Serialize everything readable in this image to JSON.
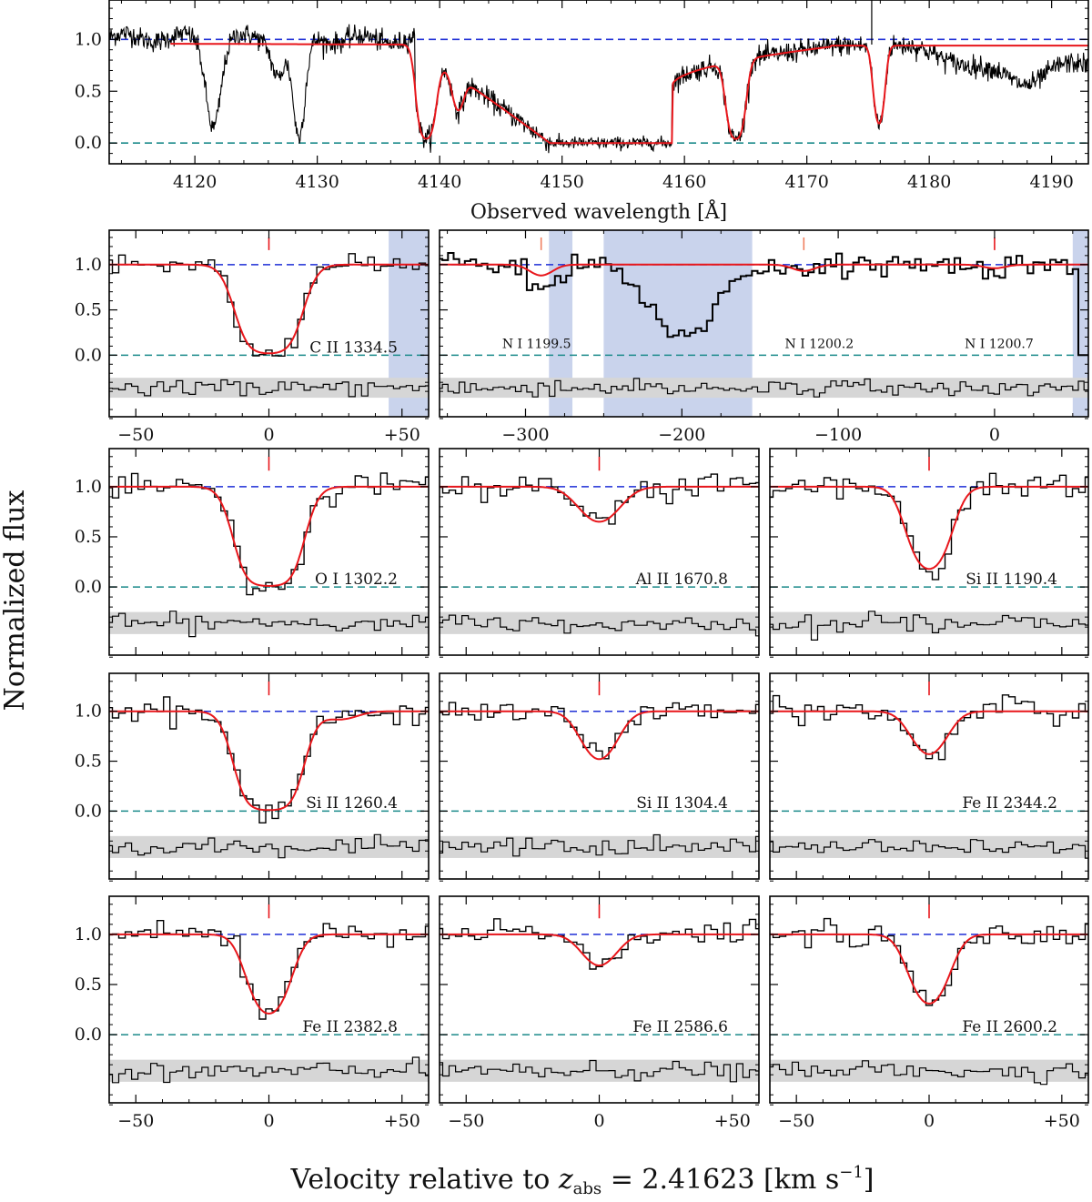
{
  "figure": {
    "ylabel": "Normalized flux",
    "xlabel": "Velocity relative to z_abs = 2.41623 [km s^-1]",
    "xlabel_prefix": "Velocity relative to ",
    "xlabel_z": "z",
    "xlabel_sub": "abs",
    "xlabel_mid": " = 2.41623 [km s",
    "xlabel_sup": "−1",
    "xlabel_end": "]",
    "top_xlabel": "Observed wavelength [Å]",
    "colors": {
      "data": "#000000",
      "model": "#e8161b",
      "continuum": "#1f2fd6",
      "zero": "#1a8a8a",
      "masked": "#c9d3ec",
      "residual_band": "#d6d6d6"
    }
  },
  "chart_data": [
    {
      "id": "overview",
      "type": "line",
      "xlabel": "Observed wavelength [Å]",
      "xlim": [
        4113,
        4193
      ],
      "ylim": [
        -0.2,
        1.38
      ],
      "xticks": [
        4120,
        4130,
        4140,
        4150,
        4160,
        4170,
        4180,
        4190
      ],
      "yticks": [
        0.0,
        0.5,
        1.0
      ],
      "absorption_features": [
        {
          "center": 4121.5,
          "depth": 0.85,
          "width": 0.6
        },
        {
          "center": 4126.8,
          "depth": 0.35,
          "width": 0.5
        },
        {
          "center": 4128.5,
          "depth": 0.95,
          "width": 0.5
        },
        {
          "center": 4138.9,
          "depth": 0.95,
          "width": 0.5
        },
        {
          "center": 4141.5,
          "depth": 0.5,
          "width": 0.4
        },
        {
          "center": 4164.2,
          "depth": 0.95,
          "width": 0.5
        },
        {
          "center": 4175.9,
          "depth": 0.8,
          "width": 0.35
        },
        {
          "center": 4188.0,
          "depth": 0.4,
          "width": 1.8
        }
      ],
      "damped_trough": {
        "start": 4149,
        "end": 4159
      }
    },
    {
      "id": "C II 1334.5",
      "ion": "C II 1334.5",
      "type": "line",
      "xlim": [
        -60,
        60
      ],
      "ylim": [
        -0.68,
        1.38
      ],
      "xticks": [
        -50,
        0,
        50
      ],
      "xticklabels": [
        "−50",
        "0",
        "+50"
      ],
      "yticks": [
        0.0,
        0.5,
        1.0
      ],
      "components": [
        {
          "v": 0,
          "depth": 0.98,
          "sigma": 7
        }
      ],
      "masked": [
        [
          45,
          60
        ]
      ]
    },
    {
      "id": "N I",
      "type": "line",
      "xlim": [
        -355,
        60
      ],
      "ylim": [
        -0.68,
        1.38
      ],
      "xticks": [
        -300,
        -200,
        -100,
        0
      ],
      "xticklabels": [
        "−300",
        "−200",
        "−100",
        "0"
      ],
      "labels": [
        {
          "text": "N I 1199.5",
          "v": -290
        },
        {
          "text": "N I 1200.2",
          "v": -115
        },
        {
          "text": "N I 1200.7",
          "v": 0
        }
      ],
      "markers": [
        -290,
        -122,
        0
      ],
      "components": [
        {
          "v": -290,
          "depth": 0.12,
          "sigma": 7
        },
        {
          "v": -122,
          "depth": 0.07,
          "sigma": 7
        },
        {
          "v": 0,
          "depth": 0.04,
          "sigma": 7
        }
      ],
      "masked": [
        [
          -285,
          -270
        ],
        [
          -250,
          -155
        ],
        [
          50,
          60
        ]
      ],
      "data_trough": {
        "v": -200,
        "depth": 0.82,
        "sigma": 20
      }
    },
    {
      "id": "O I 1302.2",
      "ion": "O I 1302.2",
      "type": "line",
      "xlim": [
        -60,
        60
      ],
      "ylim": [
        -0.68,
        1.38
      ],
      "xticks": [
        -50,
        0,
        50
      ],
      "components": [
        {
          "v": 0,
          "depth": 0.99,
          "sigma": 7
        }
      ],
      "masked": []
    },
    {
      "id": "Al II 1670.8",
      "ion": "Al II 1670.8",
      "type": "line",
      "xlim": [
        -60,
        60
      ],
      "ylim": [
        -0.68,
        1.38
      ],
      "xticks": [
        -50,
        0,
        50
      ],
      "components": [
        {
          "v": 0,
          "depth": 0.35,
          "sigma": 7
        }
      ],
      "masked": []
    },
    {
      "id": "Si II 1190.4",
      "ion": "Si II 1190.4",
      "type": "line",
      "xlim": [
        -60,
        60
      ],
      "ylim": [
        -0.68,
        1.38
      ],
      "xticks": [
        -50,
        0,
        50
      ],
      "components": [
        {
          "v": 0,
          "depth": 0.82,
          "sigma": 6
        }
      ],
      "masked": []
    },
    {
      "id": "Si II 1260.4",
      "ion": "Si II 1260.4",
      "type": "line",
      "xlim": [
        -60,
        60
      ],
      "ylim": [
        -0.68,
        1.38
      ],
      "xticks": [
        -50,
        0,
        50
      ],
      "components": [
        {
          "v": 0,
          "depth": 0.99,
          "sigma": 7
        },
        {
          "v": 27,
          "depth": 0.08,
          "sigma": 6
        }
      ],
      "masked": []
    },
    {
      "id": "Si II 1304.4",
      "ion": "Si II 1304.4",
      "type": "line",
      "xlim": [
        -60,
        60
      ],
      "ylim": [
        -0.68,
        1.38
      ],
      "xticks": [
        -50,
        0,
        50
      ],
      "components": [
        {
          "v": 0,
          "depth": 0.48,
          "sigma": 6
        }
      ],
      "masked": []
    },
    {
      "id": "Fe II 2344.2",
      "ion": "Fe II 2344.2",
      "type": "line",
      "xlim": [
        -60,
        60
      ],
      "ylim": [
        -0.68,
        1.38
      ],
      "xticks": [
        -50,
        0,
        50
      ],
      "components": [
        {
          "v": 0,
          "depth": 0.43,
          "sigma": 6
        }
      ],
      "masked": []
    },
    {
      "id": "Fe II 2382.8",
      "ion": "Fe II 2382.8",
      "type": "line",
      "xlim": [
        -60,
        60
      ],
      "ylim": [
        -0.68,
        1.38
      ],
      "xticks": [
        -50,
        0,
        50
      ],
      "xticklabels": [
        "−50",
        "0",
        "+50"
      ],
      "components": [
        {
          "v": 0,
          "depth": 0.79,
          "sigma": 6
        }
      ],
      "masked": []
    },
    {
      "id": "Fe II 2586.6",
      "ion": "Fe II 2586.6",
      "type": "line",
      "xlim": [
        -60,
        60
      ],
      "ylim": [
        -0.68,
        1.38
      ],
      "xticks": [
        -50,
        0,
        50
      ],
      "xticklabels": [
        "−50",
        "0",
        "+50"
      ],
      "components": [
        {
          "v": 0,
          "depth": 0.31,
          "sigma": 6
        }
      ],
      "masked": []
    },
    {
      "id": "Fe II 2600.2",
      "ion": "Fe II 2600.2",
      "type": "line",
      "xlim": [
        -60,
        60
      ],
      "ylim": [
        -0.68,
        1.38
      ],
      "xticks": [
        -50,
        0,
        50
      ],
      "xticklabels": [
        "−50",
        "0",
        "+50"
      ],
      "components": [
        {
          "v": 0,
          "depth": 0.69,
          "sigma": 6
        }
      ],
      "masked": []
    }
  ]
}
